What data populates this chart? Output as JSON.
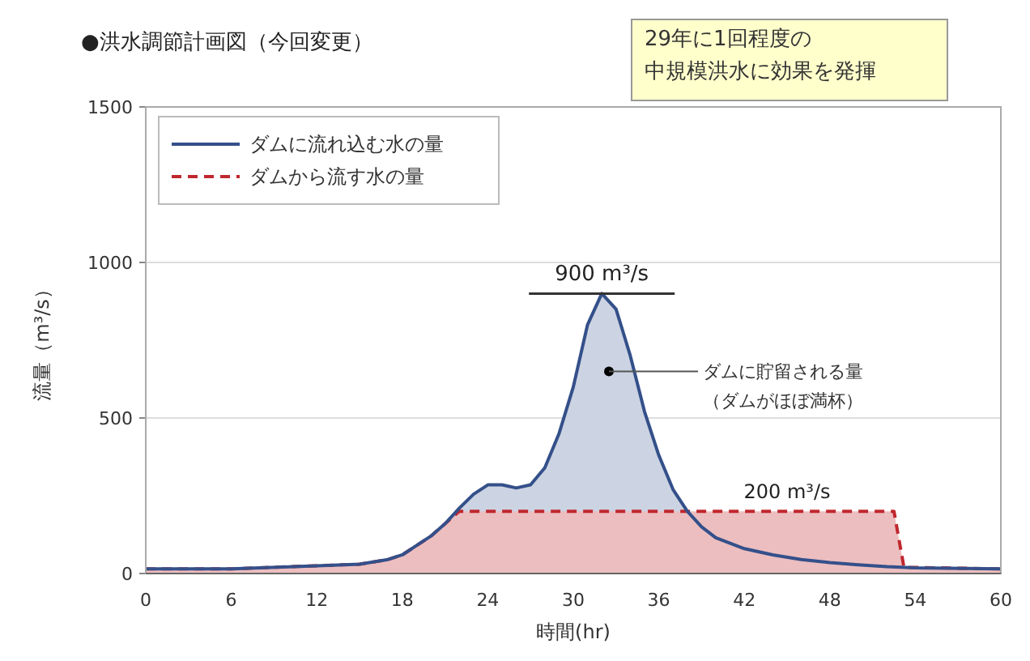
{
  "chart_data": {
    "type": "area",
    "title": "●洪水調節計画図（今回変更）",
    "xlabel": "時間(hr)",
    "ylabel": "流量（m³/s）",
    "xlim": [
      0,
      60
    ],
    "xticks": [
      0,
      6,
      12,
      18,
      24,
      30,
      36,
      42,
      48,
      54,
      60
    ],
    "ylim": [
      0,
      1500
    ],
    "yticks": [
      0,
      500,
      1000,
      1500
    ],
    "grid": "y",
    "legend": "top left",
    "series": [
      {
        "name": "ダムに流れ込む水の量",
        "color": "#34508a",
        "line_style": "solid",
        "x": [
          0,
          6,
          12,
          15,
          17,
          18,
          19,
          20,
          21,
          22,
          23,
          24,
          25,
          26,
          27,
          28,
          29,
          30,
          31,
          32,
          33,
          34,
          35,
          36,
          37,
          38,
          39,
          40,
          42,
          44,
          46,
          48,
          50,
          52,
          54,
          60
        ],
        "values": [
          15,
          15,
          25,
          30,
          45,
          60,
          90,
          120,
          160,
          210,
          255,
          285,
          285,
          275,
          285,
          340,
          450,
          600,
          800,
          900,
          850,
          700,
          520,
          380,
          270,
          200,
          150,
          115,
          80,
          60,
          45,
          35,
          28,
          22,
          18,
          15
        ]
      },
      {
        "name": "ダムから流す水の量",
        "color": "#c0272d",
        "line_style": "dashed",
        "x": [
          0,
          6,
          12,
          15,
          17,
          18,
          19,
          20,
          21,
          22,
          52.5,
          53.2,
          60
        ],
        "values": [
          15,
          15,
          25,
          30,
          45,
          60,
          90,
          120,
          160,
          200,
          200,
          20,
          15
        ]
      }
    ],
    "annotations": [
      {
        "text": "900 m³/s",
        "x": 32,
        "y": 900
      },
      {
        "text": "200 m³/s",
        "x": 45,
        "y": 200
      },
      {
        "text": "ダムに貯留される量（ダムがほぼ満杯）",
        "x": 32.5,
        "y": 650
      },
      "29年に1回程度の",
      "中規模洪水に効果を発揮"
    ]
  }
}
